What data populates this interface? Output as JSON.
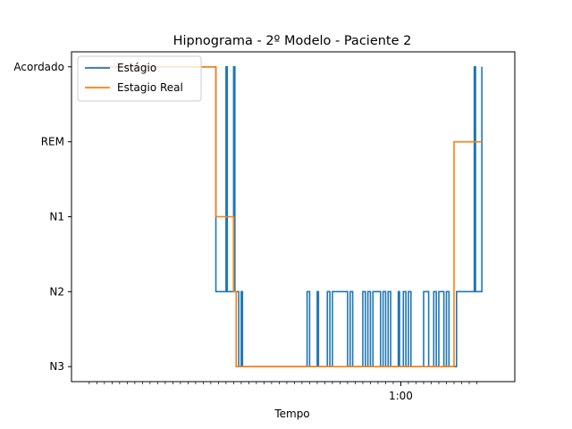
{
  "chart_data": {
    "type": "line",
    "title": "Hipnograma - 2º Modelo - Paciente 2",
    "xlabel": "Tempo",
    "ylabel": "",
    "y_categories": [
      "N3",
      "N2",
      "N1",
      "REM",
      "Acordado"
    ],
    "x_tick_labels": [
      {
        "x": 123,
        "label": "1:00"
      }
    ],
    "x_minor_tick_step": 3,
    "xlim": [
      -7,
      168
    ],
    "ylim": [
      -0.2,
      4.2
    ],
    "grid": false,
    "legend_position": "top-left",
    "series": [
      {
        "name": "Estágio",
        "color": "#1f77b4",
        "points": [
          [
            0,
            4
          ],
          [
            50,
            4
          ],
          [
            50,
            1
          ],
          [
            54,
            1
          ],
          [
            54,
            4
          ],
          [
            54.5,
            4
          ],
          [
            54.5,
            1
          ],
          [
            57,
            1
          ],
          [
            57,
            4
          ],
          [
            57.5,
            4
          ],
          [
            57.5,
            1
          ],
          [
            59,
            1
          ],
          [
            59,
            0
          ],
          [
            60,
            0
          ],
          [
            60,
            1
          ],
          [
            60.5,
            1
          ],
          [
            60.5,
            0
          ],
          [
            86,
            0
          ],
          [
            86,
            1
          ],
          [
            87,
            1
          ],
          [
            87,
            0
          ],
          [
            90,
            0
          ],
          [
            90,
            1
          ],
          [
            90.5,
            1
          ],
          [
            90.5,
            0
          ],
          [
            94,
            0
          ],
          [
            94,
            1
          ],
          [
            95,
            1
          ],
          [
            95,
            0
          ],
          [
            96,
            0
          ],
          [
            96,
            1
          ],
          [
            102,
            1
          ],
          [
            102,
            0
          ],
          [
            103,
            0
          ],
          [
            103,
            1
          ],
          [
            104,
            1
          ],
          [
            104,
            0
          ],
          [
            108,
            0
          ],
          [
            108,
            1
          ],
          [
            109,
            1
          ],
          [
            109,
            0
          ],
          [
            110,
            0
          ],
          [
            110,
            1
          ],
          [
            111,
            1
          ],
          [
            111,
            0
          ],
          [
            112,
            0
          ],
          [
            112,
            1
          ],
          [
            115,
            1
          ],
          [
            115,
            0
          ],
          [
            116,
            0
          ],
          [
            116,
            1
          ],
          [
            117,
            1
          ],
          [
            117,
            0
          ],
          [
            118,
            0
          ],
          [
            118,
            1
          ],
          [
            119,
            1
          ],
          [
            119,
            0
          ],
          [
            122,
            0
          ],
          [
            122,
            1
          ],
          [
            122.5,
            1
          ],
          [
            122.5,
            0
          ],
          [
            124,
            0
          ],
          [
            124,
            1
          ],
          [
            125,
            1
          ],
          [
            125,
            0
          ],
          [
            126,
            0
          ],
          [
            126,
            1
          ],
          [
            127,
            1
          ],
          [
            127,
            0
          ],
          [
            132,
            0
          ],
          [
            132,
            1
          ],
          [
            134,
            1
          ],
          [
            134,
            0
          ],
          [
            136,
            0
          ],
          [
            136,
            1
          ],
          [
            137,
            1
          ],
          [
            137,
            0
          ],
          [
            138,
            0
          ],
          [
            138,
            1
          ],
          [
            140,
            1
          ],
          [
            140,
            0
          ],
          [
            141,
            0
          ],
          [
            141,
            1
          ],
          [
            142,
            1
          ],
          [
            142,
            0
          ],
          [
            145,
            0
          ],
          [
            145,
            1
          ],
          [
            152,
            1
          ],
          [
            152,
            4
          ],
          [
            152.5,
            4
          ],
          [
            152.5,
            1
          ],
          [
            155,
            1
          ],
          [
            155,
            4
          ]
        ]
      },
      {
        "name": "Estagio Real",
        "color": "#ff7f0e",
        "points": [
          [
            0,
            4
          ],
          [
            50,
            4
          ],
          [
            50,
            2
          ],
          [
            57,
            2
          ],
          [
            57,
            1
          ],
          [
            58,
            1
          ],
          [
            58,
            0
          ],
          [
            144,
            0
          ],
          [
            144,
            3
          ],
          [
            155,
            3
          ]
        ]
      }
    ]
  }
}
